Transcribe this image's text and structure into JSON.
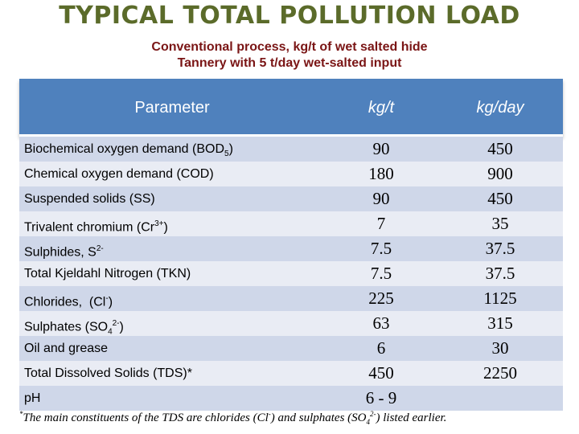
{
  "header": {
    "title": "TYPICAL TOTAL POLLUTION LOAD",
    "subtitle_1": "Conventional process, kg/t of wet salted hide",
    "subtitle_2": "Tannery with 5 t/day wet-salted input"
  },
  "table": {
    "columns": [
      "Parameter",
      "kg/t",
      "kg/day"
    ],
    "rows": [
      {
        "parameter": "Biochemical oxygen demand (BOD5)",
        "kg_t": "90",
        "kg_day": "450"
      },
      {
        "parameter": "Chemical oxygen demand (COD)",
        "kg_t": "180",
        "kg_day": "900"
      },
      {
        "parameter": "Suspended solids (SS)",
        "kg_t": "90",
        "kg_day": "450"
      },
      {
        "parameter": "Trivalent chromium (Cr3+)",
        "kg_t": "7",
        "kg_day": "35"
      },
      {
        "parameter": "Sulphides, S2-",
        "kg_t": "7.5",
        "kg_day": "37.5"
      },
      {
        "parameter": "Total Kjeldahl Nitrogen (TKN)",
        "kg_t": "7.5",
        "kg_day": "37.5"
      },
      {
        "parameter": "Chlorides, (Cl-)",
        "kg_t": "225",
        "kg_day": "1125"
      },
      {
        "parameter": "Sulphates (SO42-)",
        "kg_t": "63",
        "kg_day": "315"
      },
      {
        "parameter": "Oil and grease",
        "kg_t": "6",
        "kg_day": "30"
      },
      {
        "parameter": "Total Dissolved Solids (TDS)*",
        "kg_t": "450",
        "kg_day": "2250"
      },
      {
        "parameter": "pH",
        "kg_t": "6 - 9",
        "kg_day": ""
      }
    ]
  },
  "footnote": "*The main constituents of the TDS are chlorides (Cl-) and sulphates (SO42-) listed earlier.",
  "colors": {
    "title": "#5b6b2a",
    "subtitle": "#7a1515",
    "header_bg": "#4f81bd",
    "band_dark": "#cfd7e9",
    "band_light": "#e9ecf4"
  }
}
